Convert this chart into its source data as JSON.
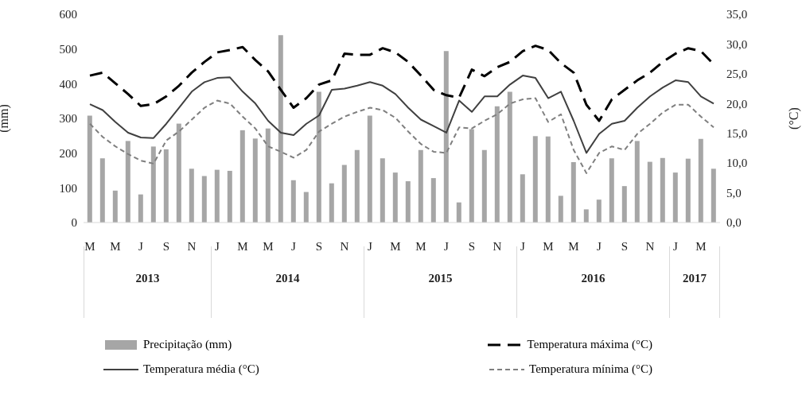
{
  "chart_data": {
    "type": "bar",
    "categories": [
      "M",
      null,
      "M",
      null,
      "J",
      null,
      "S",
      null,
      "N",
      null,
      "J",
      null,
      "M",
      null,
      "M",
      null,
      "J",
      null,
      "S",
      null,
      "N",
      null,
      "J",
      null,
      "M",
      null,
      "M",
      null,
      "J",
      null,
      "S",
      null,
      "N",
      null,
      "J",
      null,
      "M",
      null,
      "M",
      null,
      "J",
      null,
      "S",
      null,
      "N",
      null,
      "J",
      null,
      "M",
      null
    ],
    "series": [
      {
        "name": "Precipitação (mm)",
        "color": "#a6a6a6",
        "values": [
          308,
          185,
          92,
          235,
          81,
          219,
          211,
          285,
          155,
          134,
          152,
          149,
          266,
          242,
          271,
          540,
          122,
          88,
          377,
          113,
          166,
          209,
          308,
          185,
          144,
          119,
          209,
          128,
          494,
          58,
          269,
          209,
          335,
          377,
          139,
          249,
          248,
          77,
          174,
          38,
          66,
          185,
          105,
          235,
          175,
          186,
          144,
          184,
          241,
          155
        ]
      },
      {
        "name": "Temperatura máxima (°C)",
        "type": "line",
        "axis": "y2",
        "color": "#000000",
        "line_style": "dashed",
        "values": [
          24.7,
          25.2,
          23.4,
          21.6,
          19.6,
          19.9,
          21.2,
          23,
          25.2,
          27,
          28.6,
          29,
          29.5,
          27.3,
          25.4,
          22.3,
          19.3,
          20.9,
          23.2,
          23.9,
          28.4,
          28.2,
          28.2,
          29.3,
          28.6,
          27,
          24.7,
          22.3,
          21.4,
          21,
          25.7,
          24.6,
          26.1,
          27,
          28.8,
          29.7,
          29,
          26.8,
          25.2,
          19.8,
          17.1,
          20.7,
          22.3,
          23.9,
          25.2,
          27,
          28.4,
          29.3,
          28.8,
          26.6
        ]
      },
      {
        "name": "Temperatura média (°C)",
        "type": "line",
        "axis": "y2",
        "color": "#404040",
        "line_style": "solid",
        "values": [
          19.9,
          18.9,
          16.9,
          15.1,
          14.3,
          14.2,
          16.6,
          19.3,
          22,
          23.6,
          24.3,
          24.4,
          22,
          20,
          17.1,
          15.1,
          14.7,
          16.6,
          18,
          22.3,
          22.5,
          23,
          23.6,
          23,
          21.6,
          19.3,
          17.3,
          16.2,
          15.1,
          20.5,
          18.6,
          21.2,
          21.2,
          23.2,
          24.7,
          24.3,
          20.9,
          22,
          17.1,
          11.7,
          14.9,
          16.6,
          17.1,
          19.3,
          21.2,
          22.7,
          23.9,
          23.6,
          21.2,
          20
        ]
      },
      {
        "name": "Temperatura mínima (°C)",
        "type": "line",
        "axis": "y2",
        "color": "#7f7f7f",
        "line_style": "dotted",
        "values": [
          16.6,
          14.4,
          12.8,
          11.5,
          10.4,
          9.9,
          13.8,
          15.3,
          17.3,
          19.3,
          20.5,
          20,
          17.8,
          15.8,
          12.8,
          11.9,
          10.9,
          12.2,
          15.3,
          16.6,
          17.8,
          18.6,
          19.3,
          18.9,
          17.6,
          15.3,
          13.2,
          11.9,
          11.7,
          16,
          15.8,
          17.1,
          18.2,
          20,
          20.7,
          20.9,
          16.9,
          18.2,
          12.2,
          8.3,
          11.7,
          12.8,
          12.2,
          14.9,
          16.6,
          18.5,
          19.8,
          19.8,
          17.8,
          16
        ]
      }
    ],
    "ylabel": "(mm)",
    "y2label": "(°C)",
    "ylim": [
      0,
      600
    ],
    "yticks": [
      0,
      100,
      200,
      300,
      400,
      500,
      600
    ],
    "y2lim": [
      0,
      35
    ],
    "y2ticks": [
      {
        "value": 0,
        "label": "0,0"
      },
      {
        "value": 5,
        "label": "5,0"
      },
      {
        "value": 10,
        "label": "10,0"
      },
      {
        "value": 15,
        "label": "15,0"
      },
      {
        "value": 20,
        "label": "20,0"
      },
      {
        "value": 25,
        "label": "25,0"
      },
      {
        "value": 30,
        "label": "30,0"
      },
      {
        "value": 35,
        "label": "35,0"
      }
    ],
    "annotations": [
      "2013",
      "2014",
      "2015",
      "2016",
      "2017"
    ],
    "grid": false,
    "legend": "bottom",
    "marker": "none"
  }
}
